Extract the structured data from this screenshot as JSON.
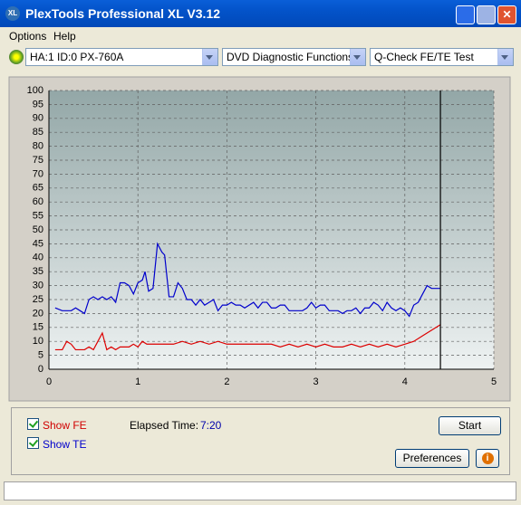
{
  "window": {
    "title": "PlexTools Professional XL V3.12"
  },
  "menu": [
    "Options",
    "Help"
  ],
  "toolbar": {
    "drive": "HA:1 ID:0  PX-760A",
    "function": "DVD Diagnostic Functions",
    "test": "Q-Check FE/TE Test"
  },
  "chart_data": {
    "type": "line",
    "xlim": [
      0,
      5
    ],
    "xticks": [
      0,
      1,
      2,
      3,
      4,
      5
    ],
    "ylim": [
      0,
      100
    ],
    "yticks": [
      0,
      5,
      10,
      15,
      20,
      25,
      30,
      35,
      40,
      45,
      50,
      55,
      60,
      65,
      70,
      75,
      80,
      85,
      90,
      95,
      100
    ],
    "grid": true,
    "marker_x": 4.4,
    "series": [
      {
        "name": "TE",
        "color": "#0000cc",
        "x": [
          0.07,
          0.15,
          0.25,
          0.3,
          0.35,
          0.4,
          0.45,
          0.5,
          0.55,
          0.6,
          0.65,
          0.7,
          0.75,
          0.8,
          0.85,
          0.9,
          0.95,
          1.0,
          1.05,
          1.08,
          1.12,
          1.17,
          1.22,
          1.27,
          1.3,
          1.35,
          1.4,
          1.45,
          1.5,
          1.55,
          1.6,
          1.65,
          1.7,
          1.75,
          1.8,
          1.85,
          1.9,
          1.95,
          2.0,
          2.05,
          2.1,
          2.15,
          2.2,
          2.3,
          2.35,
          2.4,
          2.45,
          2.5,
          2.55,
          2.6,
          2.65,
          2.7,
          2.8,
          2.85,
          2.9,
          2.95,
          3.0,
          3.05,
          3.1,
          3.15,
          3.2,
          3.25,
          3.3,
          3.35,
          3.4,
          3.45,
          3.5,
          3.55,
          3.6,
          3.65,
          3.7,
          3.75,
          3.8,
          3.85,
          3.9,
          3.95,
          4.0,
          4.05,
          4.1,
          4.15,
          4.2,
          4.25,
          4.3,
          4.4
        ],
        "values": [
          22,
          21,
          21,
          22,
          21,
          20,
          25,
          26,
          25,
          26,
          25,
          26,
          24,
          31,
          31,
          30,
          27,
          31,
          32,
          35,
          28,
          29,
          45,
          42,
          41,
          26,
          26,
          31,
          29,
          25,
          25,
          23,
          25,
          23,
          24,
          25,
          21,
          23,
          23,
          24,
          23,
          23,
          22,
          24,
          22,
          24,
          24,
          22,
          22,
          23,
          23,
          21,
          21,
          21,
          22,
          24,
          22,
          23,
          23,
          21,
          21,
          21,
          20,
          21,
          21,
          22,
          20,
          22,
          22,
          24,
          23,
          21,
          24,
          22,
          21,
          22,
          21,
          19,
          23,
          24,
          27,
          30,
          29,
          29
        ]
      },
      {
        "name": "FE",
        "color": "#dd0000",
        "x": [
          0.07,
          0.15,
          0.2,
          0.25,
          0.3,
          0.35,
          0.4,
          0.45,
          0.5,
          0.55,
          0.6,
          0.65,
          0.7,
          0.75,
          0.8,
          0.9,
          0.95,
          1.0,
          1.05,
          1.1,
          1.2,
          1.3,
          1.4,
          1.5,
          1.6,
          1.7,
          1.8,
          1.9,
          2.0,
          2.1,
          2.2,
          2.3,
          2.4,
          2.5,
          2.6,
          2.7,
          2.8,
          2.9,
          3.0,
          3.1,
          3.2,
          3.3,
          3.4,
          3.5,
          3.6,
          3.7,
          3.8,
          3.9,
          4.0,
          4.1,
          4.2,
          4.3,
          4.4
        ],
        "values": [
          7,
          7,
          10,
          9,
          7,
          7,
          7,
          8,
          7,
          10,
          13,
          7,
          8,
          7,
          8,
          8,
          9,
          8,
          10,
          9,
          9,
          9,
          9,
          10,
          9,
          10,
          9,
          10,
          9,
          9,
          9,
          9,
          9,
          9,
          8,
          9,
          8,
          9,
          8,
          9,
          8,
          8,
          9,
          8,
          9,
          8,
          9,
          8,
          9,
          10,
          12,
          14,
          16
        ]
      }
    ]
  },
  "controls": {
    "show_fe": "Show FE",
    "show_te": "Show TE",
    "elapsed_label": "Elapsed Time:",
    "elapsed_value": "7:20",
    "start": "Start",
    "preferences": "Preferences"
  }
}
